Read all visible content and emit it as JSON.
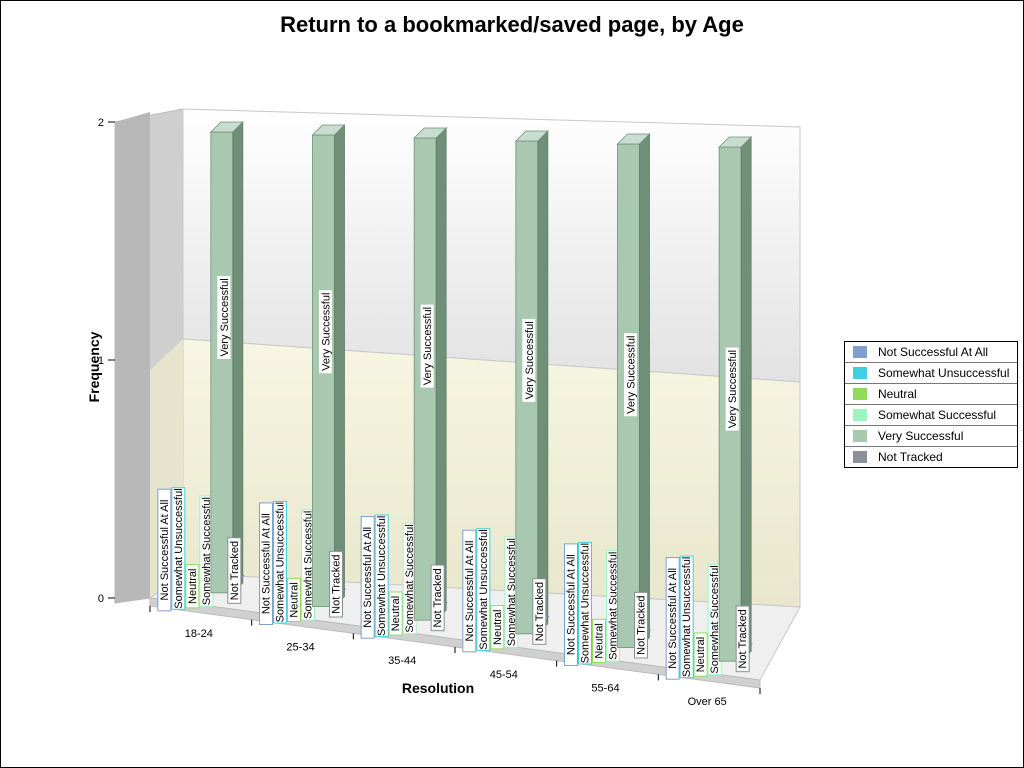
{
  "chart_data": {
    "type": "bar",
    "title": "Return to a bookmarked/saved page, by Age",
    "xlabel": "Resolution",
    "ylabel": "Frequency",
    "ylim": [
      0,
      2
    ],
    "yticks": [
      "0",
      "1",
      "2"
    ],
    "categories": [
      "18-24",
      "25-34",
      "35-44",
      "45-54",
      "55-64",
      "Over 65"
    ],
    "series": [
      {
        "name": "Not Successful At All",
        "color": "#7f9fd0",
        "values": [
          0,
          0,
          0,
          0,
          0,
          0
        ]
      },
      {
        "name": "Somewhat Unsuccessful",
        "color": "#3fcfe0",
        "values": [
          0,
          0,
          0,
          0,
          0,
          0
        ]
      },
      {
        "name": "Neutral",
        "color": "#8fdc5a",
        "values": [
          0,
          0,
          0,
          0,
          0,
          0
        ]
      },
      {
        "name": "Somewhat Successful",
        "color": "#9ff5c0",
        "values": [
          0,
          0,
          0,
          0,
          0,
          0
        ]
      },
      {
        "name": "Very Successful",
        "color": "#a8c8b0",
        "values": [
          2,
          2,
          2,
          2,
          2,
          2
        ]
      },
      {
        "name": "Not Tracked",
        "color": "#8a9098",
        "values": [
          0,
          0,
          0,
          0,
          0,
          0
        ]
      }
    ],
    "legend_position": "right",
    "grid": true
  }
}
